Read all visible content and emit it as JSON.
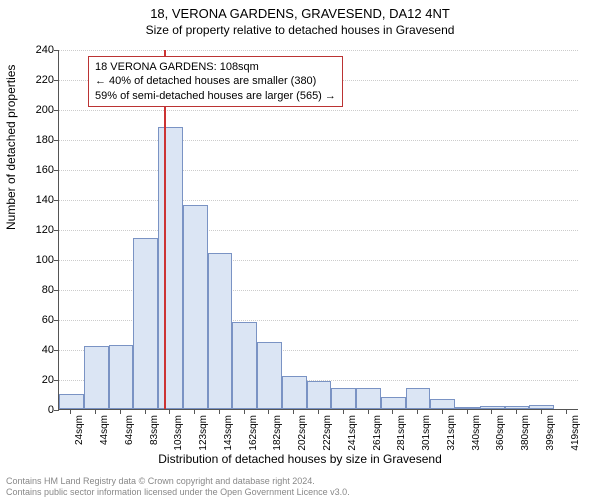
{
  "title": "18, VERONA GARDENS, GRAVESEND, DA12 4NT",
  "subtitle": "Size of property relative to detached houses in Gravesend",
  "chart": {
    "type": "histogram",
    "ylabel": "Number of detached properties",
    "xlabel": "Distribution of detached houses by size in Gravesend",
    "ylim": [
      0,
      240
    ],
    "ytick_step": 20,
    "yticks": [
      0,
      20,
      40,
      60,
      80,
      100,
      120,
      140,
      160,
      180,
      200,
      220,
      240
    ],
    "categories": [
      "24sqm",
      "44sqm",
      "64sqm",
      "83sqm",
      "103sqm",
      "123sqm",
      "143sqm",
      "162sqm",
      "182sqm",
      "202sqm",
      "222sqm",
      "241sqm",
      "261sqm",
      "281sqm",
      "301sqm",
      "321sqm",
      "340sqm",
      "360sqm",
      "380sqm",
      "399sqm",
      "419sqm"
    ],
    "values": [
      10,
      42,
      43,
      114,
      188,
      136,
      104,
      58,
      45,
      22,
      19,
      14,
      14,
      8,
      14,
      7,
      1,
      2,
      2,
      3,
      0
    ],
    "bar_fill": "#dbe5f4",
    "bar_stroke": "#7a93c4",
    "grid_color": "#cccccc",
    "background_color": "#ffffff",
    "axis_color": "#555555",
    "marker": {
      "position_category_index": 4.25,
      "color": "#cc3333"
    },
    "annotation": {
      "lines": [
        "18 VERONA GARDENS: 108sqm",
        "← 40% of detached houses are smaller (380)",
        "59% of semi-detached houses are larger (565) →"
      ],
      "border_color": "#bb3333",
      "background": "#ffffff",
      "fontsize": 11
    },
    "title_fontsize": 13,
    "label_fontsize": 12,
    "tick_fontsize": 11
  },
  "footer": {
    "line1": "Contains HM Land Registry data © Crown copyright and database right 2024.",
    "line2": "Contains public sector information licensed under the Open Government Licence v3.0."
  }
}
